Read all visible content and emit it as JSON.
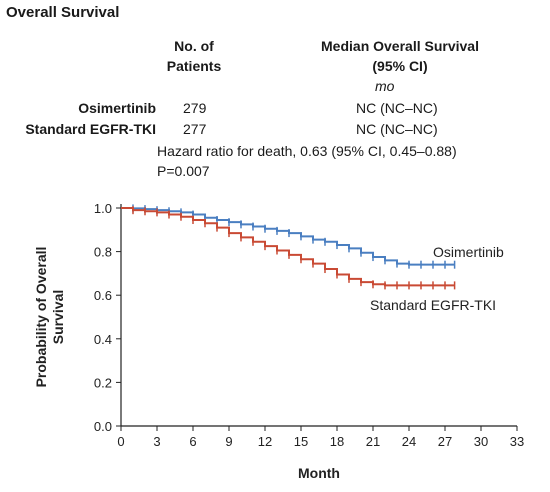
{
  "header": {
    "title": "Overall Survival",
    "col_patients": [
      "No. of",
      "Patients"
    ],
    "col_median": [
      "Median Overall Survival",
      "(95% CI)"
    ],
    "unit": "mo"
  },
  "arms": [
    {
      "name": "Osimertinib",
      "patients": "279",
      "median": "NC (NC–NC)"
    },
    {
      "name": "Standard EGFR-TKI",
      "patients": "277",
      "median": "NC (NC–NC)"
    }
  ],
  "stats": {
    "hazard_ratio": "Hazard ratio for death, 0.63 (95% CI, 0.45–0.88)",
    "p_value": "P=0.007"
  },
  "colors": {
    "osimertinib": "#4a7fc1",
    "standard": "#c94a34",
    "axis": "#222222"
  },
  "chart_data": {
    "type": "line",
    "xlabel": "Month",
    "ylabel": "Probability of Overall Survival",
    "xlim": [
      0,
      33
    ],
    "ylim": [
      0,
      1.0
    ],
    "xticks": [
      0,
      3,
      6,
      9,
      12,
      15,
      18,
      21,
      24,
      27,
      30,
      33
    ],
    "yticks": [
      0.0,
      0.2,
      0.4,
      0.6,
      0.8,
      1.0
    ],
    "series": [
      {
        "name": "Osimertinib",
        "x": [
          0,
          1,
          2,
          3,
          4,
          5,
          6,
          7,
          8,
          9,
          10,
          11,
          12,
          13,
          14,
          15,
          16,
          17,
          18,
          19,
          20,
          21,
          22,
          23,
          24,
          25,
          26,
          27,
          27.8
        ],
        "y": [
          1.0,
          0.998,
          0.995,
          0.99,
          0.985,
          0.98,
          0.97,
          0.955,
          0.945,
          0.935,
          0.925,
          0.915,
          0.905,
          0.895,
          0.885,
          0.87,
          0.855,
          0.845,
          0.83,
          0.815,
          0.795,
          0.775,
          0.76,
          0.745,
          0.74,
          0.74,
          0.74,
          0.74,
          0.74
        ]
      },
      {
        "name": "Standard EGFR-TKI",
        "x": [
          0,
          1,
          2,
          3,
          4,
          5,
          6,
          7,
          8,
          9,
          10,
          11,
          12,
          13,
          14,
          15,
          16,
          17,
          18,
          19,
          20,
          21,
          22,
          23,
          24,
          25,
          26,
          27,
          27.8
        ],
        "y": [
          1.0,
          0.99,
          0.985,
          0.98,
          0.97,
          0.96,
          0.945,
          0.93,
          0.91,
          0.885,
          0.865,
          0.845,
          0.825,
          0.805,
          0.785,
          0.765,
          0.745,
          0.72,
          0.695,
          0.675,
          0.66,
          0.65,
          0.645,
          0.645,
          0.645,
          0.645,
          0.645,
          0.645,
          0.645
        ]
      }
    ],
    "annotations": [
      "Osimertinib",
      "Standard EGFR-TKI"
    ]
  }
}
